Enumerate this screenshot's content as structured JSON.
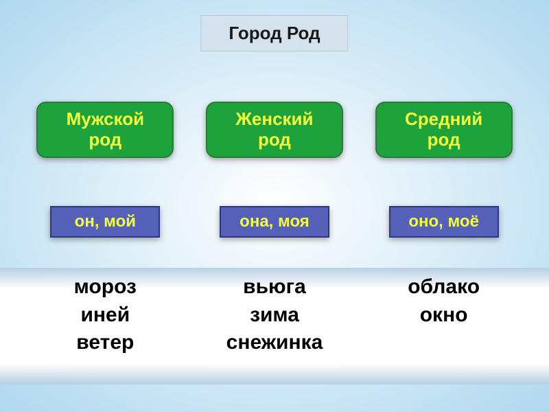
{
  "title": "Город Род",
  "colors": {
    "title_bg": "#d3e2ec",
    "title_border": "#bcc9d2",
    "title_text": "#1a1a1a",
    "gender_bg": "#1ea23c",
    "gender_border": "#2b7a3a",
    "gender_text": "#f3ff3a",
    "pronoun_bg": "#5561b8",
    "pronoun_border": "#2e3878",
    "pronoun_text": "#f3ff3a",
    "words_text": "#000000"
  },
  "typography": {
    "title_fontsize": 26,
    "gender_fontsize": 26,
    "pronoun_fontsize": 24,
    "words_fontsize": 30
  },
  "columns": [
    {
      "gender": "Мужской\nрод",
      "pronoun": "он, мой",
      "words": [
        "мороз",
        "иней",
        "ветер"
      ]
    },
    {
      "gender": "Женский\nрод",
      "pronoun": "она, моя",
      "words": [
        "вьюга",
        "зима",
        "снежинка"
      ]
    },
    {
      "gender": "Средний\nрод",
      "pronoun": "оно, моё",
      "words": [
        "облако",
        "окно"
      ]
    }
  ]
}
